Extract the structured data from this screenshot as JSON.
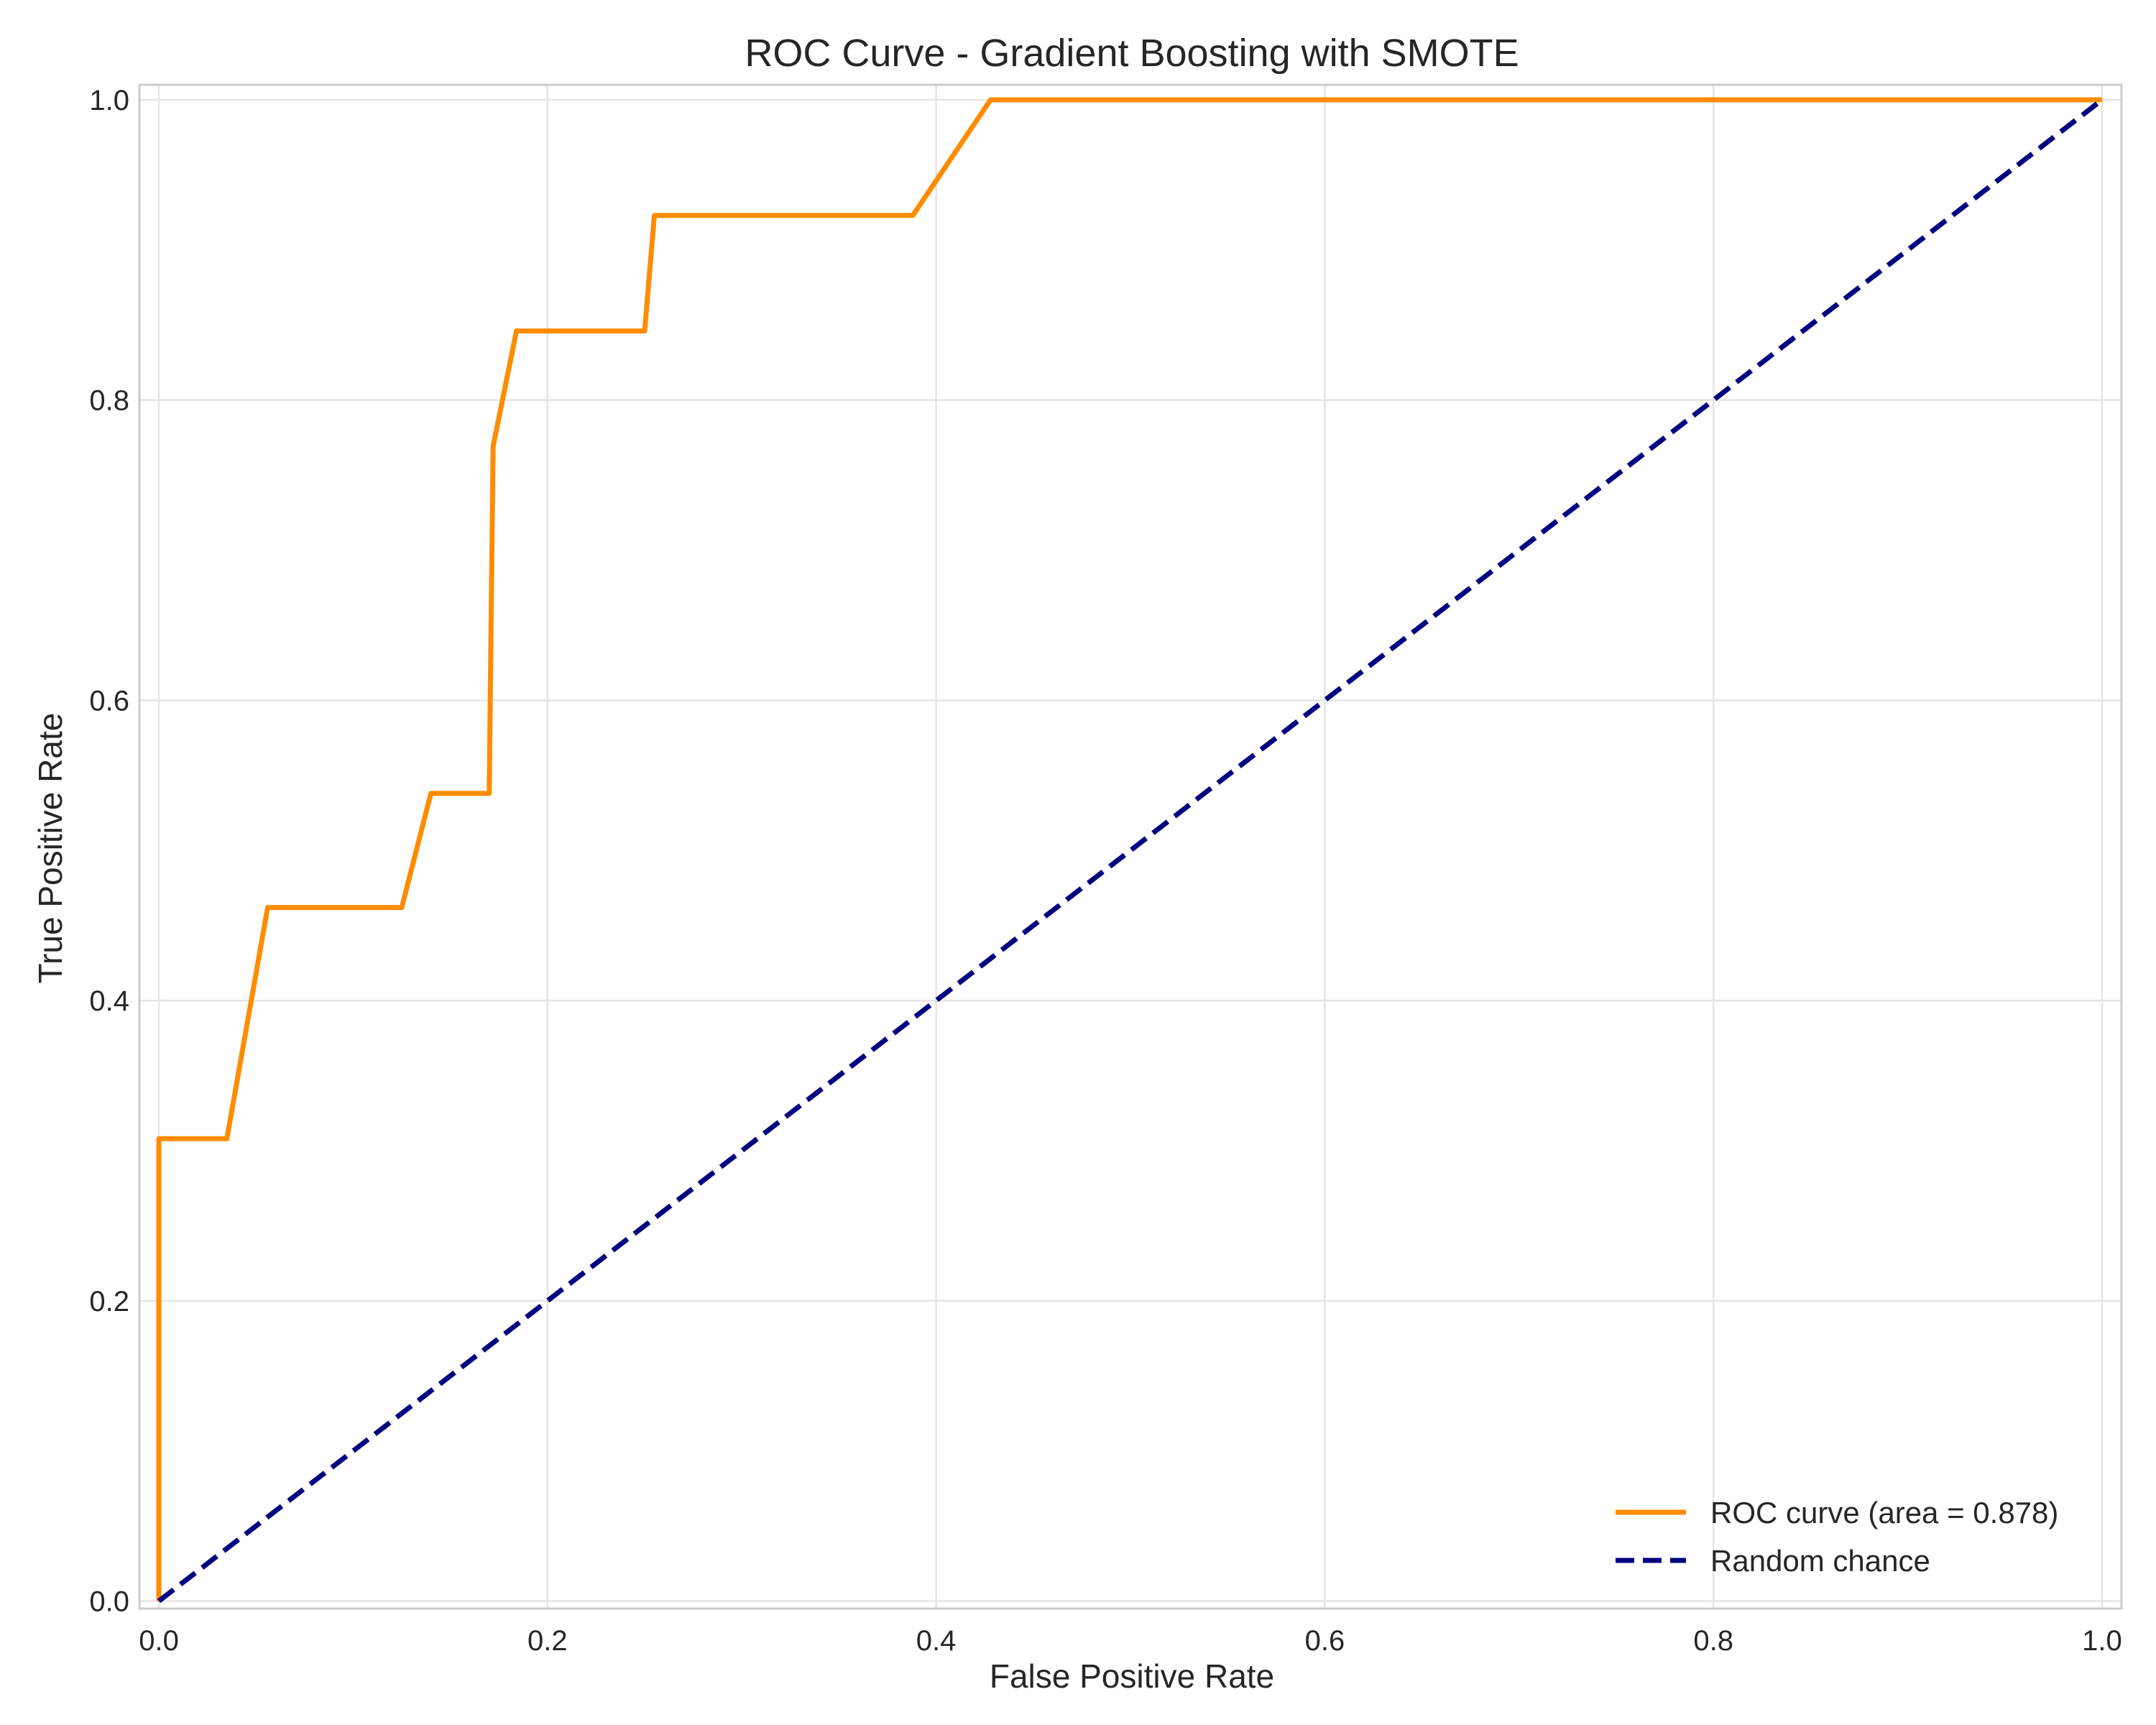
{
  "chart_data": {
    "type": "line",
    "title": "ROC Curve - Gradient Boosting with SMOTE",
    "xlabel": "False Positive Rate",
    "ylabel": "True Positive Rate",
    "xlim": [
      -0.01,
      1.01
    ],
    "ylim": [
      -0.005,
      1.01
    ],
    "xticks": [
      0.0,
      0.2,
      0.4,
      0.6,
      0.8,
      1.0
    ],
    "yticks": [
      0.0,
      0.2,
      0.4,
      0.6,
      0.8,
      1.0
    ],
    "xtick_labels": [
      "0.0",
      "0.2",
      "0.4",
      "0.6",
      "0.8",
      "1.0"
    ],
    "ytick_labels": [
      "0.0",
      "0.2",
      "0.4",
      "0.6",
      "0.8",
      "1.0"
    ],
    "grid": true,
    "legend_position": "bottom-right",
    "series": [
      {
        "name": "ROC curve (area = 0.878)",
        "color": "#ff8c00",
        "style": "solid",
        "x": [
          0.0,
          0.0,
          0.035,
          0.056,
          0.125,
          0.14,
          0.17,
          0.172,
          0.184,
          0.25,
          0.255,
          0.388,
          0.428,
          1.0
        ],
        "y": [
          0.0,
          0.308,
          0.308,
          0.462,
          0.462,
          0.538,
          0.538,
          0.769,
          0.846,
          0.846,
          0.923,
          0.923,
          1.0,
          1.0
        ]
      },
      {
        "name": "Random chance",
        "color": "#000080",
        "style": "dashed",
        "x": [
          0.0,
          1.0
        ],
        "y": [
          0.0,
          1.0
        ]
      }
    ]
  }
}
